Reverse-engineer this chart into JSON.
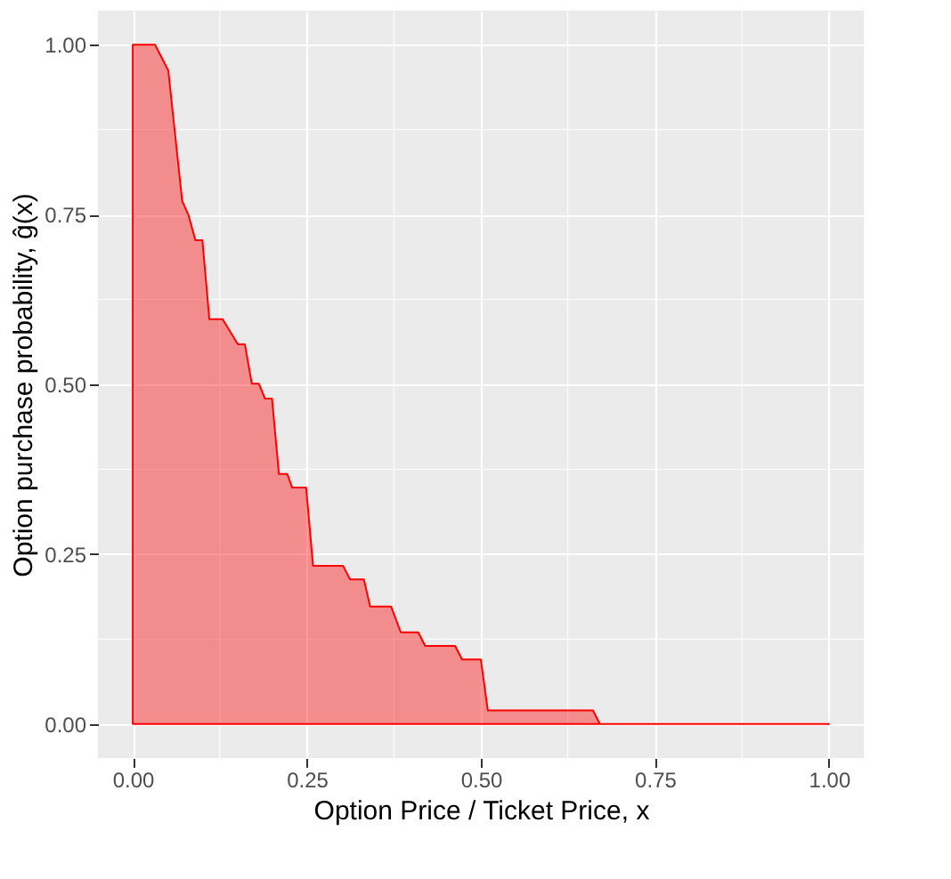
{
  "chart_data": {
    "type": "area",
    "xlabel": "Option Price / Ticket Price,  x",
    "ylabel": "Option purchase probability,   ĝ(x)",
    "x": [
      0,
      0,
      0.032,
      0.051,
      0.059,
      0.071,
      0.08,
      0.09,
      0.1,
      0.11,
      0.129,
      0.151,
      0.161,
      0.171,
      0.181,
      0.19,
      0.2,
      0.21,
      0.222,
      0.229,
      0.249,
      0.259,
      0.302,
      0.312,
      0.332,
      0.341,
      0.371,
      0.385,
      0.41,
      0.42,
      0.463,
      0.473,
      0.5,
      0.51,
      0.661,
      0.671,
      1.0
    ],
    "series": [
      {
        "color": "#ff0000",
        "values": [
          0,
          1.0,
          1.0,
          0.962,
          0.885,
          0.77,
          0.749,
          0.712,
          0.712,
          0.596,
          0.596,
          0.559,
          0.559,
          0.501,
          0.501,
          0.479,
          0.479,
          0.368,
          0.368,
          0.348,
          0.348,
          0.233,
          0.233,
          0.213,
          0.213,
          0.173,
          0.173,
          0.135,
          0.135,
          0.115,
          0.115,
          0.095,
          0.095,
          0.02,
          0.02,
          0,
          0
        ]
      }
    ],
    "xlim": [
      -0.05,
      1.05
    ],
    "ylim": [
      -0.05,
      1.05
    ],
    "xticks": [
      {
        "value": 0,
        "label": "0.00"
      },
      {
        "value": 0.25,
        "label": "0.25"
      },
      {
        "value": 0.5,
        "label": "0.50"
      },
      {
        "value": 0.75,
        "label": "0.75"
      },
      {
        "value": 1,
        "label": "1.00"
      }
    ],
    "yticks": [
      {
        "value": 0,
        "label": "0.00"
      },
      {
        "value": 0.25,
        "label": "0.25"
      },
      {
        "value": 0.5,
        "label": "0.50"
      },
      {
        "value": 0.75,
        "label": "0.75"
      },
      {
        "value": 1,
        "label": "1.00"
      }
    ],
    "grid": true
  }
}
